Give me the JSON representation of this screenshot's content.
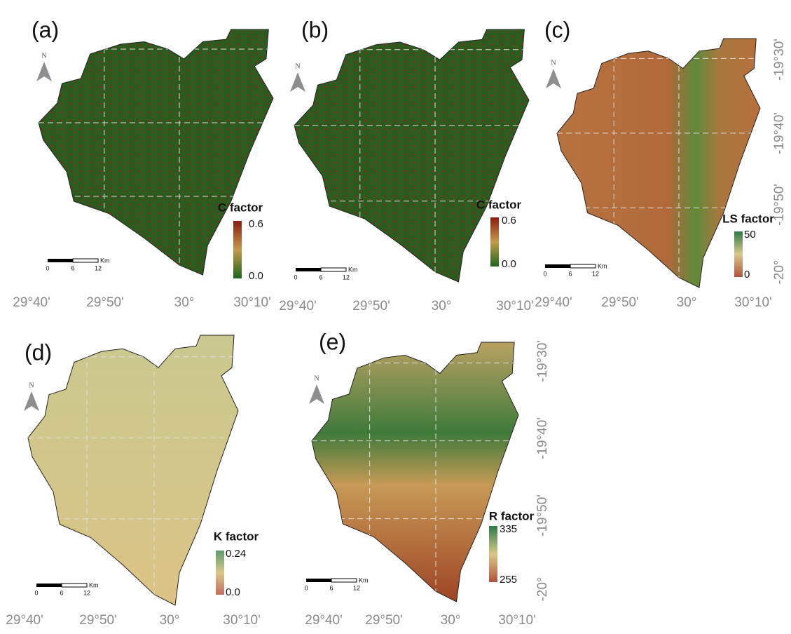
{
  "panels": [
    {
      "label": "(a)",
      "north": "N",
      "legend": {
        "title": "C factor",
        "max": "0.6",
        "min": "0.0"
      },
      "scale": {
        "ticks": [
          "0",
          "6",
          "12"
        ],
        "unit": "Km"
      },
      "lon_labels": [
        "29°40'",
        "29°50'",
        "30°",
        "30°10'"
      ]
    },
    {
      "label": "(b)",
      "north": "N",
      "legend": {
        "title": "C factor",
        "max": "0.6",
        "min": "0.0"
      },
      "scale": {
        "ticks": [
          "0",
          "6",
          "12"
        ],
        "unit": "Km"
      },
      "lon_labels": [
        "29°40'",
        "29°50'",
        "30°",
        "30°10'"
      ]
    },
    {
      "label": "(c)",
      "north": "N",
      "legend": {
        "title": "LS factor",
        "max": "50",
        "min": "0"
      },
      "scale": {
        "ticks": [
          "0",
          "6",
          "12"
        ],
        "unit": "Km"
      },
      "lon_labels": [
        "29°40'",
        "29°50'",
        "30°",
        "30°10'"
      ],
      "lat_labels": [
        "-19°30'",
        "-19°40'",
        "-19°50'",
        "-20°"
      ]
    },
    {
      "label": "(d)",
      "north": "N",
      "legend": {
        "title": "K factor",
        "max": "0.24",
        "min": "0.0"
      },
      "scale": {
        "ticks": [
          "0",
          "6",
          "12"
        ],
        "unit": "Km"
      },
      "lon_labels": [
        "29°40'",
        "29°50'",
        "30°",
        "30°10'"
      ]
    },
    {
      "label": "(e)",
      "north": "N",
      "legend": {
        "title": "R factor",
        "max": "335",
        "min": "255"
      },
      "scale": {
        "ticks": [
          "0",
          "6",
          "12"
        ],
        "unit": "Km"
      },
      "lon_labels": [
        "29°40'",
        "29°50'",
        "30°",
        "30°10'"
      ],
      "lat_labels": [
        "-19°30'",
        "-19°40'",
        "-19°50'",
        "-20°"
      ]
    }
  ]
}
